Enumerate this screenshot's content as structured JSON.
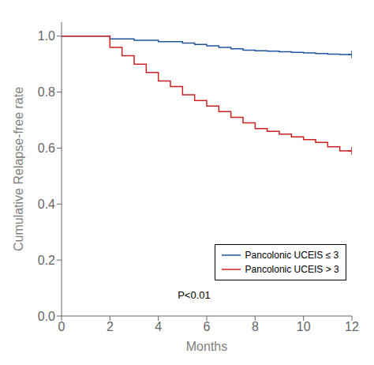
{
  "chart_data": {
    "type": "line",
    "xlabel": "Months",
    "ylabel": "Cumulative Relapse-free rate",
    "annotation": "P<0.01",
    "xlim": [
      0,
      12
    ],
    "ylim": [
      0.0,
      1.05
    ],
    "xticks": [
      0,
      2,
      4,
      6,
      8,
      10,
      12
    ],
    "yticks": [
      {
        "value": 0.0,
        "label": "0.0"
      },
      0.2,
      0.4,
      0.6,
      0.8,
      {
        "value": 1.0,
        "label": "1.0"
      }
    ],
    "grid": false,
    "legend": "lower right",
    "series": [
      {
        "name": "Pancolonic UCEIS ≤ 3",
        "type": "line",
        "line_style": "step",
        "color": "#2156a5",
        "x": [
          0,
          2.0,
          2.0,
          3.0,
          3.0,
          4.0,
          4.0,
          5.0,
          5.0,
          5.5,
          5.5,
          6.0,
          6.0,
          6.5,
          6.5,
          7.0,
          7.0,
          7.5,
          7.5,
          8.0,
          8.0,
          8.5,
          8.5,
          9.0,
          9.0,
          9.5,
          9.5,
          10.0,
          10.0,
          10.5,
          10.5,
          11.0,
          11.0,
          11.5,
          11.5,
          12.0
        ],
        "values": [
          1.0,
          1.0,
          0.99,
          0.99,
          0.985,
          0.985,
          0.98,
          0.98,
          0.975,
          0.975,
          0.97,
          0.97,
          0.965,
          0.965,
          0.96,
          0.96,
          0.955,
          0.955,
          0.95,
          0.95,
          0.948,
          0.948,
          0.946,
          0.946,
          0.944,
          0.944,
          0.942,
          0.942,
          0.94,
          0.94,
          0.938,
          0.938,
          0.936,
          0.936,
          0.934,
          0.934
        ]
      },
      {
        "name": "Pancolonic UCEIS > 3",
        "type": "line",
        "line_style": "step",
        "color": "#cc2222",
        "x": [
          0,
          2.0,
          2.0,
          2.5,
          2.5,
          3.0,
          3.0,
          3.5,
          3.5,
          4.0,
          4.0,
          4.5,
          4.5,
          5.0,
          5.0,
          5.5,
          5.5,
          6.0,
          6.0,
          6.5,
          6.5,
          7.0,
          7.0,
          7.5,
          7.5,
          8.0,
          8.0,
          8.5,
          8.5,
          9.0,
          9.0,
          9.5,
          9.5,
          10.0,
          10.0,
          10.5,
          10.5,
          11.0,
          11.0,
          11.5,
          11.5,
          12.0
        ],
        "values": [
          1.0,
          1.0,
          0.96,
          0.96,
          0.93,
          0.93,
          0.9,
          0.9,
          0.87,
          0.87,
          0.84,
          0.84,
          0.82,
          0.82,
          0.79,
          0.79,
          0.77,
          0.77,
          0.75,
          0.75,
          0.73,
          0.73,
          0.71,
          0.71,
          0.69,
          0.69,
          0.67,
          0.67,
          0.66,
          0.66,
          0.65,
          0.65,
          0.64,
          0.64,
          0.63,
          0.63,
          0.62,
          0.62,
          0.605,
          0.605,
          0.59,
          0.59
        ]
      },
      {
        "type": "scatter",
        "marker": "plus",
        "color": "#2156a5",
        "x": [
          12.0
        ],
        "values": [
          0.934
        ]
      },
      {
        "type": "scatter",
        "marker": "plus",
        "color": "#cc2222",
        "x": [
          12.0
        ],
        "values": [
          0.59
        ]
      }
    ]
  }
}
